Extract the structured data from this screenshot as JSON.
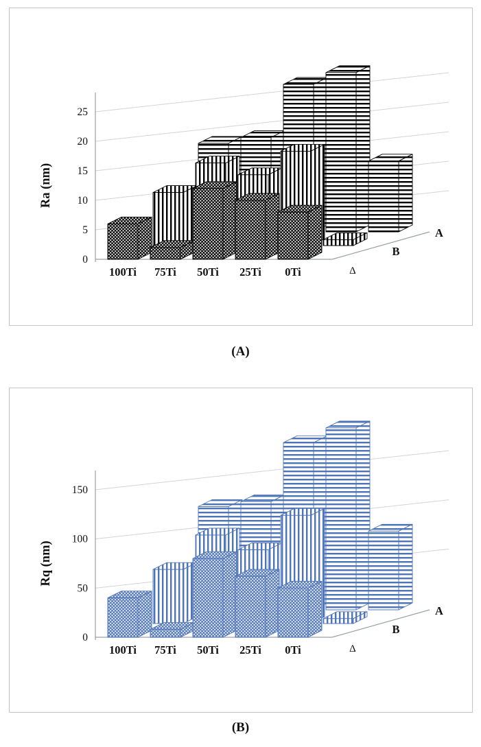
{
  "figures": [
    {
      "caption": "(A)"
    },
    {
      "caption": "(B)"
    }
  ],
  "chart_data": [
    {
      "type": "bar",
      "subtype": "3d-column",
      "title": "",
      "xlabel": "",
      "ylabel": "Ra (nm)",
      "categories": [
        "100Ti",
        "75Ti",
        "50Ti",
        "25Ti",
        "0Ti"
      ],
      "series": [
        {
          "name": "Δ",
          "pattern": "diagonal-crosshatch",
          "values": [
            6,
            2,
            12,
            10,
            8
          ]
        },
        {
          "name": "B",
          "pattern": "vertical-stripes",
          "values": [
            9,
            14,
            12,
            16,
            1
          ]
        },
        {
          "name": "A",
          "pattern": "horizontal-stripes",
          "values": [
            15,
            16,
            25,
            27,
            12
          ]
        }
      ],
      "yticks": [
        0,
        5,
        10,
        15,
        20,
        25
      ],
      "ylim": [
        0,
        27
      ],
      "grid": true,
      "color": "#000000",
      "legend_position": "depth-axis-right"
    },
    {
      "type": "bar",
      "subtype": "3d-column",
      "title": "",
      "xlabel": "",
      "ylabel": "Rq (nm)",
      "categories": [
        "100Ti",
        "75Ti",
        "50Ti",
        "25Ti",
        "0Ti"
      ],
      "series": [
        {
          "name": "Δ",
          "pattern": "diagonal-crosshatch",
          "values": [
            40,
            8,
            80,
            62,
            50
          ]
        },
        {
          "name": "B",
          "pattern": "vertical-stripes",
          "values": [
            55,
            90,
            75,
            110,
            5
          ]
        },
        {
          "name": "A",
          "pattern": "horizontal-stripes",
          "values": [
            105,
            110,
            170,
            185,
            80
          ]
        }
      ],
      "yticks": [
        0,
        50,
        100,
        150
      ],
      "ylim": [
        0,
        190
      ],
      "grid": true,
      "color": "#4e74b8",
      "legend_position": "depth-axis-right"
    }
  ]
}
